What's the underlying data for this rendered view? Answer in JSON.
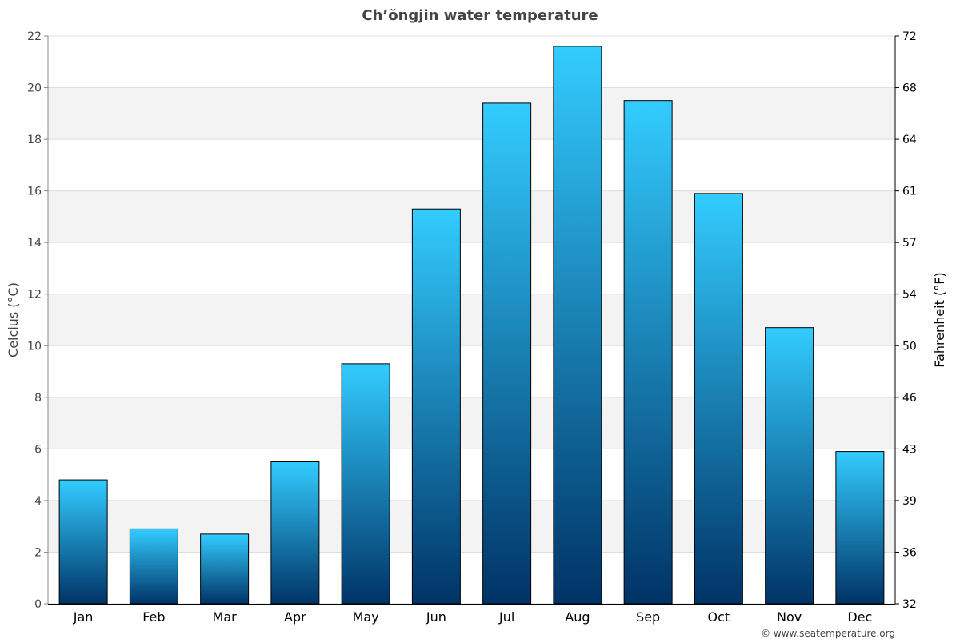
{
  "chart_data": {
    "type": "bar",
    "title": "Ch’ŏngjin water temperature",
    "ylabel": "Celcius (°C)",
    "ylabel_right": "Fahrenheit (°F)",
    "categories": [
      "Jan",
      "Feb",
      "Mar",
      "Apr",
      "May",
      "Jun",
      "Jul",
      "Aug",
      "Sep",
      "Oct",
      "Nov",
      "Dec"
    ],
    "values": [
      4.8,
      2.9,
      2.7,
      5.5,
      9.3,
      15.3,
      19.4,
      21.6,
      19.5,
      15.9,
      10.7,
      5.9
    ],
    "ylim": [
      0,
      22
    ],
    "yticks": [
      0,
      2,
      4,
      6,
      8,
      10,
      12,
      14,
      16,
      18,
      20,
      22
    ],
    "yticks_right": [
      32,
      36,
      39,
      43,
      46,
      50,
      54,
      57,
      61,
      64,
      68,
      72
    ],
    "grid": true,
    "colors": {
      "bar_top": "#33ccff",
      "bar_bottom": "#003366",
      "band": "#f3f3f3"
    }
  },
  "credit": "© www.seatemperature.org"
}
